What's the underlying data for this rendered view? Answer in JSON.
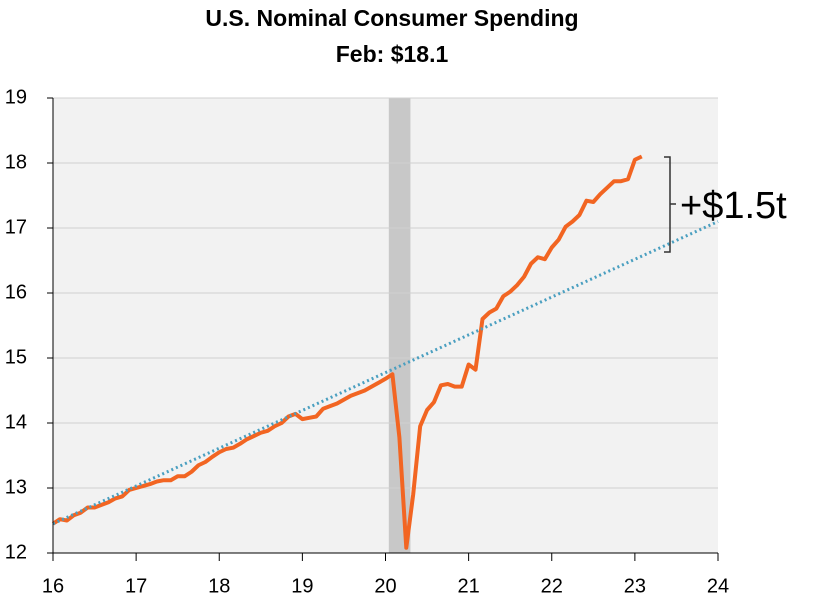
{
  "chart_data": {
    "type": "line",
    "title": "U.S. Nominal Consumer Spending",
    "subtitle": "Feb: $18.1",
    "annotation": "+$1.5t",
    "xlim": [
      16,
      24
    ],
    "xticks": [
      16,
      17,
      18,
      19,
      20,
      21,
      22,
      23,
      24
    ],
    "ylim": [
      12,
      19
    ],
    "yticks": [
      12,
      13,
      14,
      15,
      16,
      17,
      18,
      19
    ],
    "grid": true,
    "shade": [
      20.04,
      20.3
    ],
    "shade_color": "#c8c8c8",
    "series": [
      {
        "color": "#f26522",
        "style": "solid",
        "x": [
          16,
          16.083,
          16.167,
          16.25,
          16.333,
          16.417,
          16.5,
          16.583,
          16.667,
          16.75,
          16.833,
          16.917,
          17,
          17.083,
          17.167,
          17.25,
          17.333,
          17.417,
          17.5,
          17.583,
          17.667,
          17.75,
          17.833,
          17.917,
          18,
          18.083,
          18.167,
          18.25,
          18.333,
          18.417,
          18.5,
          18.583,
          18.667,
          18.75,
          18.833,
          18.917,
          19,
          19.083,
          19.167,
          19.25,
          19.333,
          19.417,
          19.5,
          19.583,
          19.667,
          19.75,
          19.833,
          19.917,
          20,
          20.083,
          20.167,
          20.25,
          20.333,
          20.417,
          20.5,
          20.583,
          20.667,
          20.75,
          20.833,
          20.917,
          21,
          21.083,
          21.167,
          21.25,
          21.333,
          21.417,
          21.5,
          21.583,
          21.667,
          21.75,
          21.833,
          21.917,
          22,
          22.083,
          22.167,
          22.25,
          22.333,
          22.417,
          22.5,
          22.583,
          22.667,
          22.75,
          22.833,
          22.917,
          23,
          23.083
        ],
        "values": [
          12.45,
          12.52,
          12.5,
          12.58,
          12.62,
          12.7,
          12.7,
          12.74,
          12.78,
          12.84,
          12.87,
          12.97,
          13,
          13.03,
          13.06,
          13.1,
          13.12,
          13.12,
          13.18,
          13.18,
          13.25,
          13.35,
          13.4,
          13.48,
          13.55,
          13.6,
          13.62,
          13.68,
          13.75,
          13.8,
          13.85,
          13.88,
          13.95,
          14.0,
          14.1,
          14.14,
          14.06,
          14.08,
          14.1,
          14.22,
          14.26,
          14.3,
          14.36,
          14.42,
          14.46,
          14.5,
          14.56,
          14.62,
          14.68,
          14.75,
          13.78,
          12.08,
          12.9,
          13.95,
          14.2,
          14.32,
          14.58,
          14.6,
          14.56,
          14.56,
          14.9,
          14.82,
          15.6,
          15.7,
          15.76,
          15.95,
          16.02,
          16.12,
          16.25,
          16.45,
          16.55,
          16.52,
          16.7,
          16.82,
          17.02,
          17.1,
          17.2,
          17.42,
          17.4,
          17.52,
          17.62,
          17.72,
          17.72,
          17.75,
          18.05,
          18.1
        ]
      },
      {
        "color": "#4a9fc0",
        "style": "dotted",
        "x": [
          16,
          24
        ],
        "values": [
          12.45,
          17.1
        ]
      }
    ]
  }
}
